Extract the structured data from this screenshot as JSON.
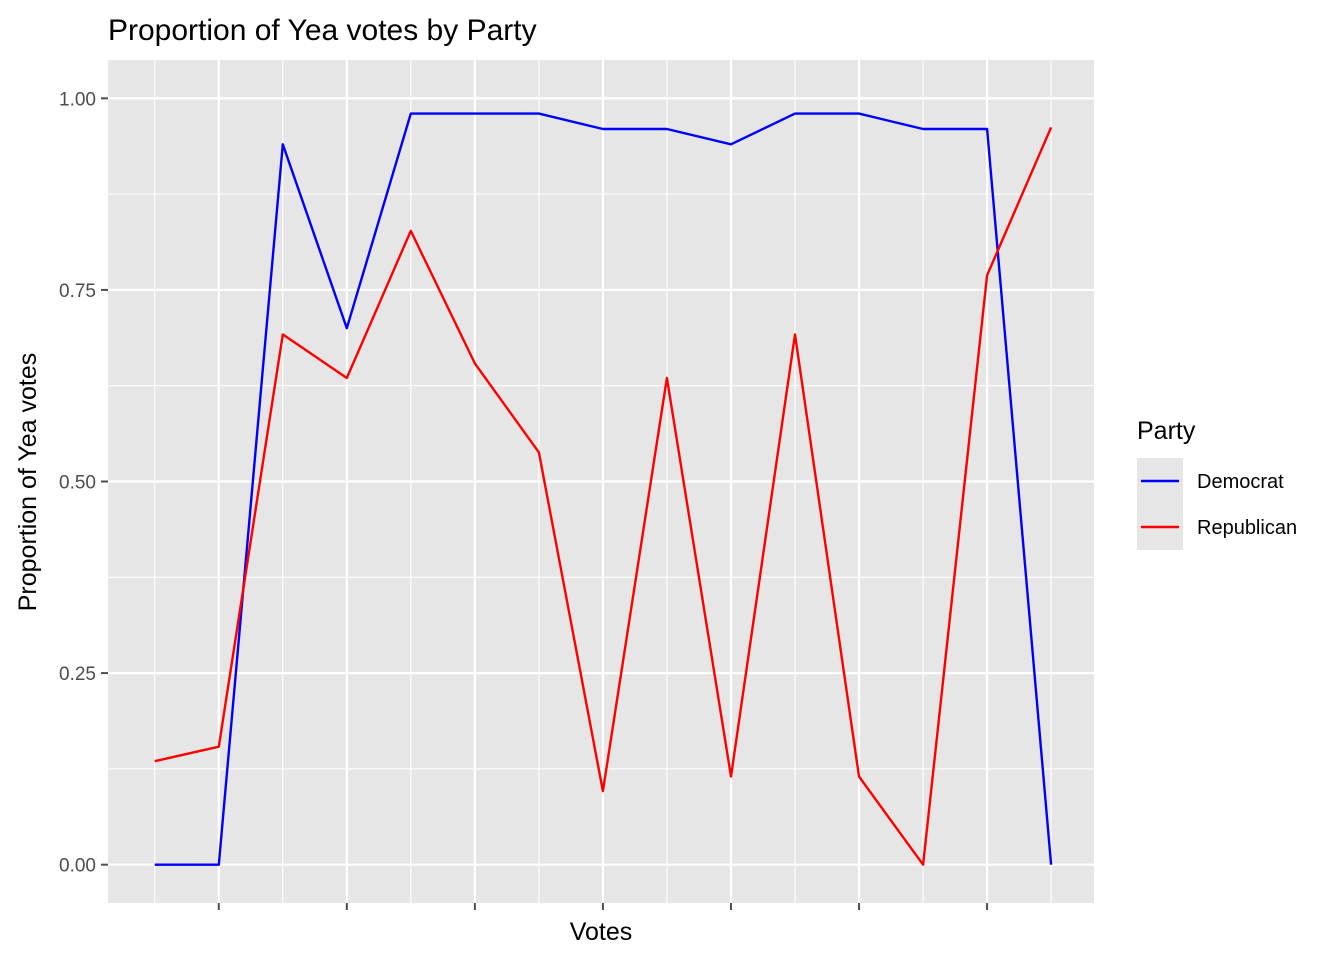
{
  "chart_data": {
    "type": "line",
    "title": "Proportion of Yea votes by Party",
    "xlabel": "Votes",
    "ylabel": "Proportion of Yea votes",
    "ylim": [
      -0.05,
      1.05
    ],
    "yticks": [
      0,
      0.25,
      0.5,
      0.75,
      1
    ],
    "ytick_labels": [
      "0.00",
      "0.25",
      "0.50",
      "0.75",
      "1.00"
    ],
    "x": [
      1,
      2,
      3,
      4,
      5,
      6,
      7,
      8,
      9,
      10,
      11,
      12,
      13,
      14,
      15
    ],
    "xlim": [
      0.27,
      15.67
    ],
    "x_major_gridlines": [
      2,
      4,
      6,
      8,
      10,
      12,
      14
    ],
    "x_tick_labels_visible": false,
    "grid": true,
    "legend": {
      "title": "Party",
      "position": "right"
    },
    "series": [
      {
        "name": "Democrat",
        "color": "#0000ff",
        "values": [
          0.0,
          0.0,
          0.94,
          0.7,
          0.98,
          0.98,
          0.98,
          0.96,
          0.96,
          0.94,
          0.98,
          0.98,
          0.96,
          0.96,
          0.0
        ]
      },
      {
        "name": "Republican",
        "color": "#ff0000",
        "values": [
          0.135,
          0.154,
          0.692,
          0.635,
          0.827,
          0.654,
          0.538,
          0.096,
          0.635,
          0.115,
          0.692,
          0.115,
          0.0,
          0.769,
          0.962
        ]
      }
    ],
    "colors": {
      "panel_background": "#e6e6e6",
      "gridline": "#ffffff",
      "legend_key_background": "#e6e6e6",
      "tick_mark": "#4d4d4d"
    }
  }
}
